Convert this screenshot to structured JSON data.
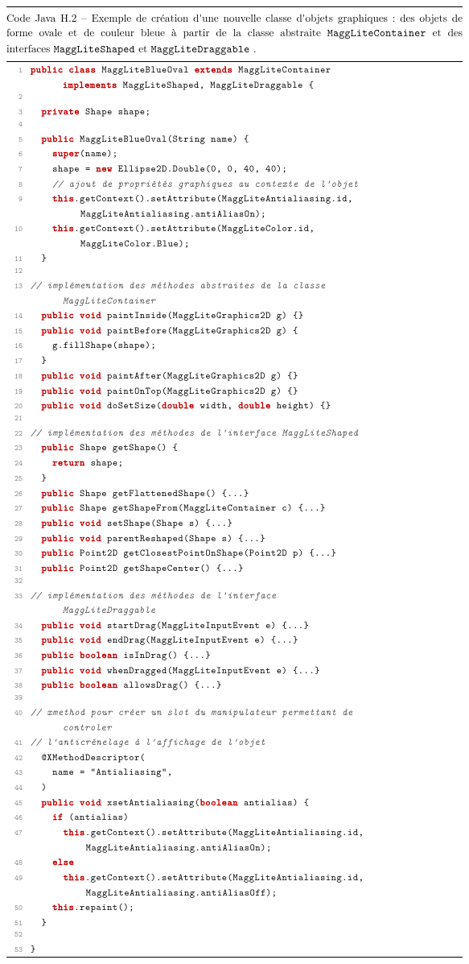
{
  "caption": {
    "label": "Code Java H.2 – Exemple de création d'une nouvelle classe d'objets graphiques : des objets de forme ovale et de couleur bleue à partir de la classe abstraite ",
    "c1": "MaggLiteContainer",
    "mid": " et des interfaces ",
    "c2": "MaggLiteShaped",
    "and": "et ",
    "c3": "MaggLiteDraggable",
    "dot": "."
  },
  "colors": {
    "keyword": "#c00000",
    "comment": "#555555",
    "lineno": "#888888",
    "rule": "#000000"
  },
  "font_sizes": {
    "body": 13.2,
    "code": 11.8,
    "lineno": 9.5
  },
  "lines": [
    {
      "n": 1,
      "segs": [
        {
          "k": true,
          "t": "public class"
        },
        {
          "t": " MaggLiteBlueOval "
        },
        {
          "k": true,
          "t": "extends"
        },
        {
          "t": " MaggLiteContainer"
        }
      ]
    },
    {
      "n": 0,
      "cont": 1,
      "segs": [
        {
          "k": true,
          "t": "implements"
        },
        {
          "t": " MaggLiteShaped, MaggLiteDraggable {"
        }
      ]
    },
    {
      "n": 2,
      "segs": [
        {
          "t": ""
        }
      ]
    },
    {
      "n": 3,
      "segs": [
        {
          "t": "  "
        },
        {
          "k": true,
          "t": "private"
        },
        {
          "t": " Shape shape;"
        }
      ]
    },
    {
      "n": 4,
      "segs": [
        {
          "t": ""
        }
      ]
    },
    {
      "n": 5,
      "segs": [
        {
          "t": "  "
        },
        {
          "k": true,
          "t": "public"
        },
        {
          "t": " MaggLiteBlueOval(String name) {"
        }
      ]
    },
    {
      "n": 6,
      "segs": [
        {
          "t": "    "
        },
        {
          "k": true,
          "t": "super"
        },
        {
          "t": "(name);"
        }
      ]
    },
    {
      "n": 7,
      "segs": [
        {
          "t": "    shape = "
        },
        {
          "k": true,
          "t": "new"
        },
        {
          "t": " Ellipse2D.Double(0, 0, 40, 40);"
        }
      ]
    },
    {
      "n": 8,
      "segs": [
        {
          "t": "    "
        },
        {
          "c": true,
          "t": "// ajout de propriétés graphiques au contexte de l'objet"
        }
      ]
    },
    {
      "n": 9,
      "segs": [
        {
          "t": "    "
        },
        {
          "k": true,
          "t": "this"
        },
        {
          "t": ".getContext().setAttribute(MaggLiteAntialiasing.id,"
        }
      ]
    },
    {
      "n": 0,
      "cont": 2,
      "segs": [
        {
          "t": "MaggLiteAntialiasing.antiAliasOn);"
        }
      ]
    },
    {
      "n": 10,
      "segs": [
        {
          "t": "    "
        },
        {
          "k": true,
          "t": "this"
        },
        {
          "t": ".getContext().setAttribute(MaggLiteColor.id,"
        }
      ]
    },
    {
      "n": 0,
      "cont": 2,
      "segs": [
        {
          "t": "MaggLiteColor.Blue);"
        }
      ]
    },
    {
      "n": 11,
      "segs": [
        {
          "t": "  }"
        }
      ]
    },
    {
      "n": 12,
      "segs": [
        {
          "t": ""
        }
      ]
    },
    {
      "n": 13,
      "segs": [
        {
          "c": true,
          "t": "// implémentation des méthodes abstraites de la classe"
        }
      ]
    },
    {
      "n": 0,
      "cont": 1,
      "segs": [
        {
          "c": true,
          "t": "MaggLiteContainer"
        }
      ]
    },
    {
      "n": 14,
      "segs": [
        {
          "t": "  "
        },
        {
          "k": true,
          "t": "public void"
        },
        {
          "t": " paintInside(MaggLiteGraphics2D g) {}"
        }
      ]
    },
    {
      "n": 15,
      "segs": [
        {
          "t": "  "
        },
        {
          "k": true,
          "t": "public void"
        },
        {
          "t": " paintBefore(MaggLiteGraphics2D g) {"
        }
      ]
    },
    {
      "n": 16,
      "segs": [
        {
          "t": "    g.fillShape(shape);"
        }
      ]
    },
    {
      "n": 17,
      "segs": [
        {
          "t": "  }"
        }
      ]
    },
    {
      "n": 18,
      "segs": [
        {
          "t": "  "
        },
        {
          "k": true,
          "t": "public void"
        },
        {
          "t": " paintAfter(MaggLiteGraphics2D g) {}"
        }
      ]
    },
    {
      "n": 19,
      "segs": [
        {
          "t": "  "
        },
        {
          "k": true,
          "t": "public void"
        },
        {
          "t": " paintOnTop(MaggLiteGraphics2D g) {}"
        }
      ]
    },
    {
      "n": 20,
      "segs": [
        {
          "t": "  "
        },
        {
          "k": true,
          "t": "public void"
        },
        {
          "t": " doSetSize("
        },
        {
          "k": true,
          "t": "double"
        },
        {
          "t": " width, "
        },
        {
          "k": true,
          "t": "double"
        },
        {
          "t": " height) {}"
        }
      ]
    },
    {
      "n": 21,
      "segs": [
        {
          "t": ""
        }
      ]
    },
    {
      "n": 22,
      "segs": [
        {
          "c": true,
          "t": "// implémentation des méthodes de l'interface MaggLiteShaped"
        }
      ]
    },
    {
      "n": 23,
      "segs": [
        {
          "t": "  "
        },
        {
          "k": true,
          "t": "public"
        },
        {
          "t": " Shape getShape() {"
        }
      ]
    },
    {
      "n": 24,
      "segs": [
        {
          "t": "    "
        },
        {
          "k": true,
          "t": "return"
        },
        {
          "t": " shape;"
        }
      ]
    },
    {
      "n": 25,
      "segs": [
        {
          "t": "  }"
        }
      ]
    },
    {
      "n": 26,
      "segs": [
        {
          "t": "  "
        },
        {
          "k": true,
          "t": "public"
        },
        {
          "t": " Shape getFlattenedShape() {...}"
        }
      ]
    },
    {
      "n": 27,
      "segs": [
        {
          "t": "  "
        },
        {
          "k": true,
          "t": "public"
        },
        {
          "t": " Shape getShapeFrom(MaggLiteContainer c) {...}"
        }
      ]
    },
    {
      "n": 28,
      "segs": [
        {
          "t": "  "
        },
        {
          "k": true,
          "t": "public void"
        },
        {
          "t": " setShape(Shape s) {...}"
        }
      ]
    },
    {
      "n": 29,
      "segs": [
        {
          "t": "  "
        },
        {
          "k": true,
          "t": "public void"
        },
        {
          "t": " parentReshaped(Shape s) {...}"
        }
      ]
    },
    {
      "n": 30,
      "segs": [
        {
          "t": "  "
        },
        {
          "k": true,
          "t": "public"
        },
        {
          "t": " Point2D getClosestPointOnShape(Point2D p) {...}"
        }
      ]
    },
    {
      "n": 31,
      "segs": [
        {
          "t": "  "
        },
        {
          "k": true,
          "t": "public"
        },
        {
          "t": " Point2D getShapeCenter() {...}"
        }
      ]
    },
    {
      "n": 32,
      "segs": [
        {
          "t": ""
        }
      ]
    },
    {
      "n": 33,
      "segs": [
        {
          "c": true,
          "t": "// implémentation des méthodes de l'interface"
        }
      ]
    },
    {
      "n": 0,
      "cont": 1,
      "segs": [
        {
          "c": true,
          "t": "MaggLiteDraggable"
        }
      ]
    },
    {
      "n": 34,
      "segs": [
        {
          "t": "  "
        },
        {
          "k": true,
          "t": "public void"
        },
        {
          "t": " startDrag(MaggLiteInputEvent e) {...}"
        }
      ]
    },
    {
      "n": 35,
      "segs": [
        {
          "t": "  "
        },
        {
          "k": true,
          "t": "public void"
        },
        {
          "t": " endDrag(MaggLiteInputEvent e) {...}"
        }
      ]
    },
    {
      "n": 36,
      "segs": [
        {
          "t": "  "
        },
        {
          "k": true,
          "t": "public boolean"
        },
        {
          "t": " isInDrag() {...}"
        }
      ]
    },
    {
      "n": 37,
      "segs": [
        {
          "t": "  "
        },
        {
          "k": true,
          "t": "public void"
        },
        {
          "t": " whenDragged(MaggLiteInputEvent e) {...}"
        }
      ]
    },
    {
      "n": 38,
      "segs": [
        {
          "t": "  "
        },
        {
          "k": true,
          "t": "public boolean"
        },
        {
          "t": " allowsDrag() {...}"
        }
      ]
    },
    {
      "n": 39,
      "segs": [
        {
          "t": ""
        }
      ]
    },
    {
      "n": 40,
      "segs": [
        {
          "c": true,
          "t": "// xmethod pour créer un slot du manipulateur permettant de"
        }
      ]
    },
    {
      "n": 0,
      "cont": 1,
      "segs": [
        {
          "c": true,
          "t": "controler"
        }
      ]
    },
    {
      "n": 41,
      "segs": [
        {
          "c": true,
          "t": "// l'anticrénelage à l'affichage de l'objet"
        }
      ]
    },
    {
      "n": 42,
      "segs": [
        {
          "t": "  @XMethodDescriptor("
        }
      ]
    },
    {
      "n": 43,
      "segs": [
        {
          "t": "    name = \"Antialiasing\","
        }
      ]
    },
    {
      "n": 44,
      "segs": [
        {
          "t": "  )"
        }
      ]
    },
    {
      "n": 45,
      "segs": [
        {
          "t": "  "
        },
        {
          "k": true,
          "t": "public void"
        },
        {
          "t": " xsetAntialiasing("
        },
        {
          "k": true,
          "t": "boolean"
        },
        {
          "t": " antialias) {"
        }
      ]
    },
    {
      "n": 46,
      "segs": [
        {
          "t": "    "
        },
        {
          "k": true,
          "t": "if"
        },
        {
          "t": " (antialias)"
        }
      ]
    },
    {
      "n": 47,
      "segs": [
        {
          "t": "      "
        },
        {
          "k": true,
          "t": "this"
        },
        {
          "t": ".getContext().setAttribute(MaggLiteAntialiasing.id,"
        }
      ]
    },
    {
      "n": 0,
      "cont": 2,
      "segs": [
        {
          "t": " MaggLiteAntialiasing.antiAliasOn);"
        }
      ]
    },
    {
      "n": 48,
      "segs": [
        {
          "t": "    "
        },
        {
          "k": true,
          "t": "else"
        }
      ]
    },
    {
      "n": 49,
      "segs": [
        {
          "t": "      "
        },
        {
          "k": true,
          "t": "this"
        },
        {
          "t": ".getContext().setAttribute(MaggLiteAntialiasing.id,"
        }
      ]
    },
    {
      "n": 0,
      "cont": 2,
      "segs": [
        {
          "t": " MaggLiteAntialiasing.antiAliasOff);"
        }
      ]
    },
    {
      "n": 50,
      "segs": [
        {
          "t": "    "
        },
        {
          "k": true,
          "t": "this"
        },
        {
          "t": ".repaint();"
        }
      ]
    },
    {
      "n": 51,
      "segs": [
        {
          "t": "  }"
        }
      ]
    },
    {
      "n": 52,
      "segs": [
        {
          "t": ""
        }
      ]
    },
    {
      "n": 53,
      "segs": [
        {
          "t": "}"
        }
      ]
    }
  ]
}
